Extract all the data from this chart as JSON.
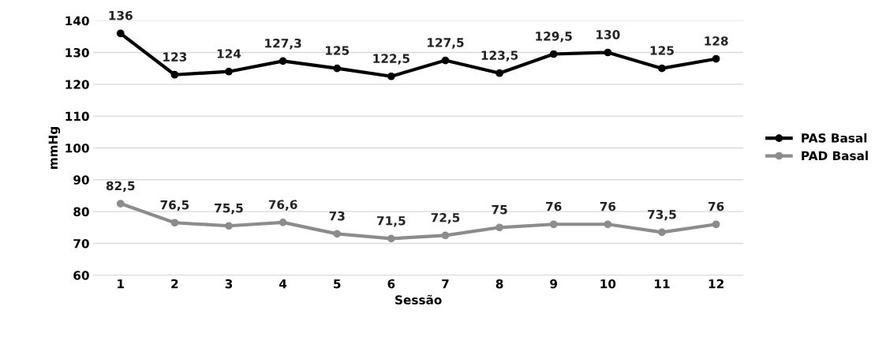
{
  "chart_data": {
    "type": "line",
    "xlabel": "Sessão",
    "ylabel": "mmHg",
    "categories": [
      "1",
      "2",
      "3",
      "4",
      "5",
      "6",
      "7",
      "8",
      "9",
      "10",
      "11",
      "12"
    ],
    "series": [
      {
        "name": "PAS Basal",
        "color": "#000000",
        "values": [
          136,
          123,
          124,
          127.3,
          125,
          122.5,
          127.5,
          123.5,
          129.5,
          130,
          125,
          128
        ],
        "value_labels": [
          "136",
          "123",
          "124",
          "127,3",
          "125",
          "122,5",
          "127,5",
          "123,5",
          "129,5",
          "130",
          "125",
          "128"
        ]
      },
      {
        "name": "PAD Basal",
        "color": "#8c8c8c",
        "values": [
          82.5,
          76.5,
          75.5,
          76.6,
          73,
          71.5,
          72.5,
          75,
          76,
          76,
          73.5,
          76
        ],
        "value_labels": [
          "82,5",
          "76,5",
          "75,5",
          "76,6",
          "73",
          "71,5",
          "72,5",
          "75",
          "76",
          "76",
          "73,5",
          "76"
        ]
      }
    ],
    "ylim": [
      60,
      140
    ],
    "yticks": [
      60,
      70,
      80,
      90,
      100,
      110,
      120,
      130,
      140
    ],
    "grid": "y",
    "legend": "right",
    "marker": "circle",
    "line_style": "solid"
  }
}
